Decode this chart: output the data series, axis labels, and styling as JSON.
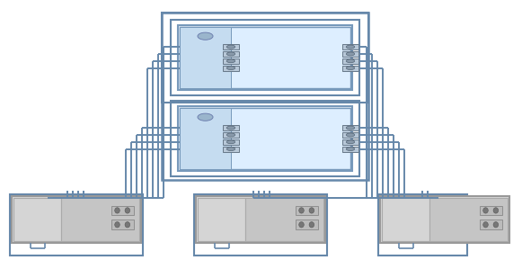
{
  "bg_color": "#ffffff",
  "ctrl_fill": "#cce0f5",
  "ctrl_fill2": "#ddeeff",
  "ctrl_edge": "#7799bb",
  "ctrl_inner_fill": "#b8d4ec",
  "hba_fill": "#c5dcf0",
  "port_bg": "#d0dde8",
  "port_fg": "#8899aa",
  "port_edge": "#667788",
  "shelf_outer_fill": "#e0e0e0",
  "shelf_outer_edge": "#999999",
  "shelf_left_fill": "#d8d8d8",
  "shelf_right_fill": "#cccccc",
  "shelf_conn_fill": "#c0c0c0",
  "shelf_conn_edge": "#888888",
  "line_color": "#6688aa",
  "line_color2": "#8899bb",
  "enc_color": "#6688aa"
}
